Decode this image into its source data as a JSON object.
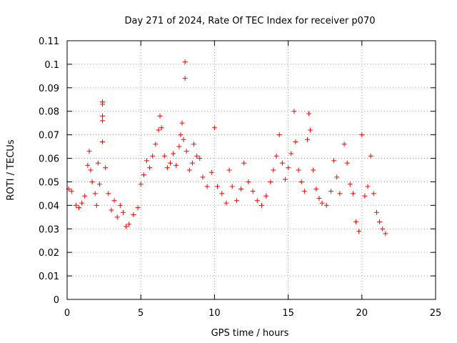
{
  "chart_data": {
    "type": "scatter",
    "title": "Day 271 of 2024, Rate Of TEC Index for receiver p070",
    "xlabel": "GPS time / hours",
    "ylabel": "ROTI / TECUs",
    "xlim": [
      0,
      25
    ],
    "ylim": [
      0,
      0.11
    ],
    "x_ticks": [
      "0",
      "5",
      "10",
      "15",
      "20",
      "25"
    ],
    "y_ticks": [
      "0",
      "0.01",
      "0.02",
      "0.03",
      "0.04",
      "0.05",
      "0.06",
      "0.07",
      "0.08",
      "0.09",
      "0.1",
      "0.11"
    ],
    "grid": true,
    "marker": "+",
    "color": "#ff0000",
    "series": [
      {
        "points": [
          [
            0.1,
            0.047
          ],
          [
            0.3,
            0.046
          ],
          [
            0.6,
            0.04
          ],
          [
            0.8,
            0.039
          ],
          [
            1.0,
            0.041
          ],
          [
            1.2,
            0.044
          ],
          [
            1.4,
            0.057
          ],
          [
            1.5,
            0.063
          ],
          [
            1.6,
            0.055
          ],
          [
            1.7,
            0.05
          ],
          [
            1.9,
            0.045
          ],
          [
            2.0,
            0.04
          ],
          [
            2.1,
            0.058
          ],
          [
            2.2,
            0.049
          ],
          [
            2.4,
            0.084
          ],
          [
            2.4,
            0.083
          ],
          [
            2.4,
            0.078
          ],
          [
            2.4,
            0.076
          ],
          [
            2.4,
            0.067
          ],
          [
            2.6,
            0.056
          ],
          [
            2.8,
            0.045
          ],
          [
            3.0,
            0.038
          ],
          [
            3.2,
            0.042
          ],
          [
            3.4,
            0.035
          ],
          [
            3.6,
            0.04
          ],
          [
            3.8,
            0.037
          ],
          [
            4.0,
            0.031
          ],
          [
            4.2,
            0.032
          ],
          [
            4.5,
            0.036
          ],
          [
            4.8,
            0.039
          ],
          [
            5.0,
            0.049
          ],
          [
            5.2,
            0.053
          ],
          [
            5.4,
            0.059
          ],
          [
            5.6,
            0.056
          ],
          [
            5.8,
            0.061
          ],
          [
            6.0,
            0.066
          ],
          [
            6.2,
            0.072
          ],
          [
            6.3,
            0.078
          ],
          [
            6.4,
            0.073
          ],
          [
            6.6,
            0.061
          ],
          [
            6.8,
            0.056
          ],
          [
            7.0,
            0.058
          ],
          [
            7.2,
            0.062
          ],
          [
            7.4,
            0.057
          ],
          [
            7.6,
            0.065
          ],
          [
            7.7,
            0.07
          ],
          [
            7.8,
            0.075
          ],
          [
            7.9,
            0.068
          ],
          [
            8.0,
            0.101
          ],
          [
            8.0,
            0.094
          ],
          [
            8.1,
            0.063
          ],
          [
            8.3,
            0.055
          ],
          [
            8.5,
            0.058
          ],
          [
            8.6,
            0.066
          ],
          [
            8.8,
            0.061
          ],
          [
            9.0,
            0.06
          ],
          [
            9.2,
            0.052
          ],
          [
            9.5,
            0.048
          ],
          [
            9.8,
            0.054
          ],
          [
            10.0,
            0.073
          ],
          [
            10.2,
            0.048
          ],
          [
            10.5,
            0.045
          ],
          [
            10.8,
            0.041
          ],
          [
            11.0,
            0.055
          ],
          [
            11.2,
            0.048
          ],
          [
            11.5,
            0.042
          ],
          [
            11.8,
            0.047
          ],
          [
            12.0,
            0.058
          ],
          [
            12.3,
            0.05
          ],
          [
            12.6,
            0.046
          ],
          [
            12.9,
            0.042
          ],
          [
            13.2,
            0.04
          ],
          [
            13.5,
            0.044
          ],
          [
            13.8,
            0.05
          ],
          [
            14.0,
            0.055
          ],
          [
            14.2,
            0.061
          ],
          [
            14.4,
            0.07
          ],
          [
            14.6,
            0.058
          ],
          [
            14.8,
            0.051
          ],
          [
            15.0,
            0.056
          ],
          [
            15.2,
            0.062
          ],
          [
            15.4,
            0.08
          ],
          [
            15.5,
            0.067
          ],
          [
            15.7,
            0.055
          ],
          [
            15.9,
            0.05
          ],
          [
            16.1,
            0.046
          ],
          [
            16.3,
            0.068
          ],
          [
            16.4,
            0.079
          ],
          [
            16.5,
            0.072
          ],
          [
            16.7,
            0.055
          ],
          [
            16.9,
            0.047
          ],
          [
            17.1,
            0.043
          ],
          [
            17.3,
            0.041
          ],
          [
            17.6,
            0.04
          ],
          [
            17.9,
            0.046
          ],
          [
            18.1,
            0.059
          ],
          [
            18.3,
            0.052
          ],
          [
            18.5,
            0.045
          ],
          [
            18.8,
            0.066
          ],
          [
            19.0,
            0.058
          ],
          [
            19.2,
            0.049
          ],
          [
            19.4,
            0.045
          ],
          [
            19.6,
            0.033
          ],
          [
            19.8,
            0.029
          ],
          [
            20.0,
            0.07
          ],
          [
            20.2,
            0.044
          ],
          [
            20.4,
            0.048
          ],
          [
            20.6,
            0.061
          ],
          [
            20.8,
            0.045
          ],
          [
            21.0,
            0.037
          ],
          [
            21.2,
            0.033
          ],
          [
            21.4,
            0.03
          ],
          [
            21.6,
            0.028
          ]
        ]
      }
    ]
  }
}
